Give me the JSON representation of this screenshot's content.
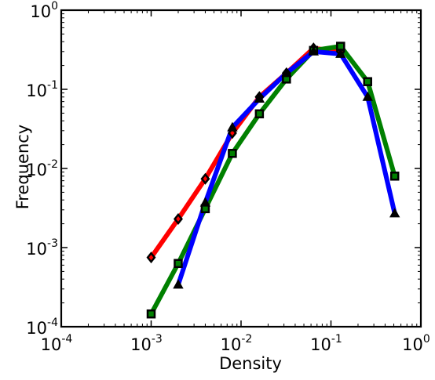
{
  "chart_data": {
    "type": "line",
    "title": "",
    "xlabel": "Density",
    "ylabel": "Frequency",
    "xscale": "log",
    "yscale": "log",
    "xlim": [
      0.0001,
      1
    ],
    "ylim": [
      0.0001,
      1
    ],
    "x_ticks": [
      {
        "base": "10",
        "exp": "-4"
      },
      {
        "base": "10",
        "exp": "-3"
      },
      {
        "base": "10",
        "exp": "-2"
      },
      {
        "base": "10",
        "exp": "-1"
      },
      {
        "base": "10",
        "exp": "0"
      }
    ],
    "y_ticks": [
      {
        "base": "10",
        "exp": "-4"
      },
      {
        "base": "10",
        "exp": "-3"
      },
      {
        "base": "10",
        "exp": "-2"
      },
      {
        "base": "10",
        "exp": "-1"
      },
      {
        "base": "10",
        "exp": "0"
      }
    ],
    "grid": false,
    "legend": "none",
    "series": [
      {
        "color": "#ff0000",
        "marker": "diamond",
        "x": [
          0.001,
          0.002,
          0.004,
          0.008,
          0.016,
          0.032,
          0.064,
          0.128
        ],
        "y": [
          0.00075,
          0.0023,
          0.0074,
          0.028,
          0.08,
          0.16,
          0.33,
          0.3
        ]
      },
      {
        "color": "#008000",
        "marker": "square",
        "x": [
          0.001,
          0.002,
          0.004,
          0.008,
          0.016,
          0.032,
          0.064,
          0.128,
          0.256,
          0.512
        ],
        "y": [
          0.000145,
          0.00063,
          0.0031,
          0.0155,
          0.049,
          0.135,
          0.31,
          0.35,
          0.125,
          0.008
        ]
      },
      {
        "color": "#0000ff",
        "marker": "triangle",
        "x": [
          0.002,
          0.004,
          0.008,
          0.016,
          0.032,
          0.064,
          0.128,
          0.256,
          0.512
        ],
        "y": [
          0.00034,
          0.0037,
          0.033,
          0.076,
          0.16,
          0.3,
          0.28,
          0.08,
          0.0027
        ]
      }
    ]
  }
}
